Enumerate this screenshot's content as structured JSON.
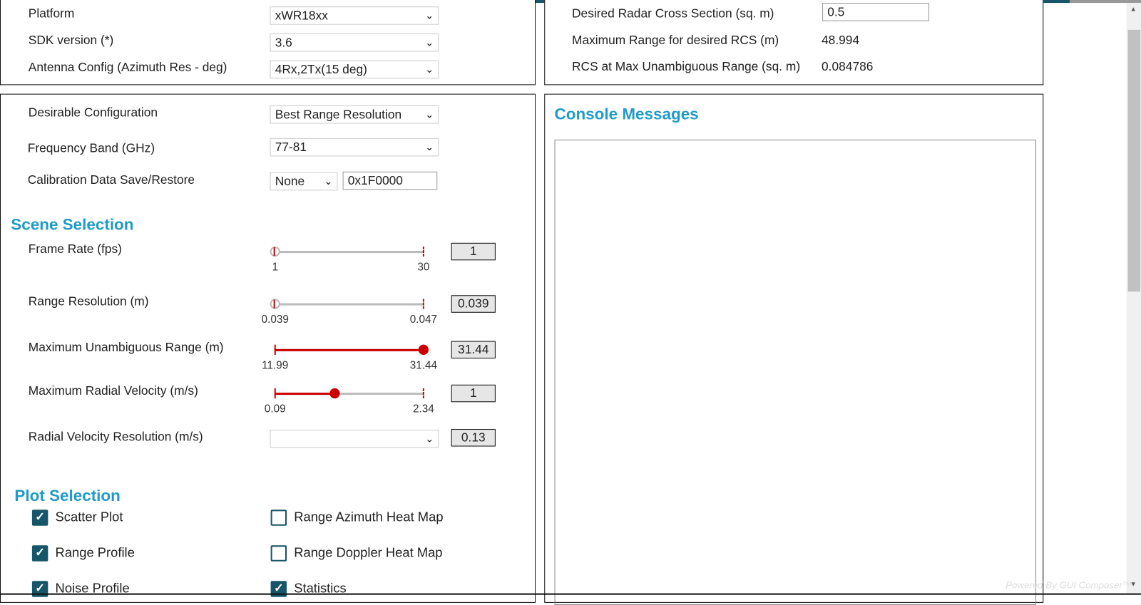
{
  "top_left": {
    "platform": {
      "label": "Platform",
      "value": "xWR18xx"
    },
    "sdk": {
      "label": "SDK version (*)",
      "value": "3.6"
    },
    "antenna": {
      "label": "Antenna Config (Azimuth Res - deg)",
      "value": "4Rx,2Tx(15 deg)"
    }
  },
  "top_right": {
    "rcs": {
      "label": "Desired Radar Cross Section (sq. m)",
      "value": "0.5"
    },
    "max_range_rcs": {
      "label": "Maximum Range for desired RCS (m)",
      "value": "48.994"
    },
    "rcs_max_unamb": {
      "label": "RCS at Max Unambiguous Range (sq. m)",
      "value": "0.084786"
    }
  },
  "config": {
    "desirable": {
      "label": "Desirable Configuration",
      "value": "Best Range Resolution"
    },
    "freq": {
      "label": "Frequency Band (GHz)",
      "value": "77-81"
    },
    "calib": {
      "label": "Calibration Data Save/Restore",
      "value": "None",
      "address": "0x1F0000"
    }
  },
  "scene": {
    "title": "Scene Selection",
    "sliders": [
      {
        "label": "Frame Rate (fps)",
        "min": "1",
        "max": "30",
        "value": "1",
        "fraction": 0
      },
      {
        "label": "Range Resolution (m)",
        "min": "0.039",
        "max": "0.047",
        "value": "0.039",
        "fraction": 0
      },
      {
        "label": "Maximum Unambiguous Range (m)",
        "min": "11.99",
        "max": "31.44",
        "value": "31.44",
        "fraction": 1
      },
      {
        "label": "Maximum Radial Velocity (m/s)",
        "min": "0.09",
        "max": "2.34",
        "value": "1",
        "fraction": 0.404
      }
    ],
    "vel_res": {
      "label": "Radial Velocity Resolution (m/s)",
      "value": "",
      "display": "0.13"
    }
  },
  "plots": {
    "title": "Plot Selection",
    "items": [
      {
        "label": "Scatter Plot",
        "checked": true
      },
      {
        "label": "Range Azimuth Heat Map",
        "checked": false
      },
      {
        "label": "Range Profile",
        "checked": true
      },
      {
        "label": "Range Doppler Heat Map",
        "checked": false
      },
      {
        "label": "Noise Profile",
        "checked": true
      },
      {
        "label": "Statistics",
        "checked": true
      }
    ]
  },
  "console": {
    "title": "Console Messages",
    "content": ""
  },
  "footer": "Powered By GUI Composer™",
  "colors": {
    "accent": "#1f9bc7",
    "slider": "#cc0000",
    "checkbox": "#17566a"
  }
}
